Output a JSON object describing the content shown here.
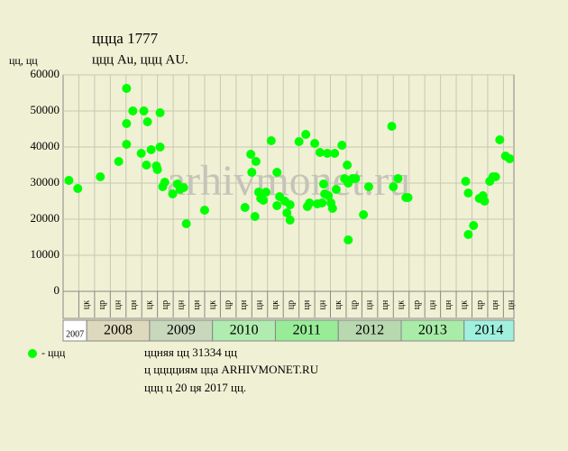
{
  "chart_data": {
    "type": "scatter",
    "title": "ццца 1777",
    "subtitle": "ццц Au, ццц AU.",
    "y_label": "цц, цц",
    "watermark": "arhivmonet.ru",
    "legend_label": "- ццц",
    "notes": [
      "ццняя цц 31334 цц",
      "ц цццциям цца ARHIVMONET.RU",
      "ццц ц 20 ця 2017 цц."
    ],
    "grid": true,
    "ylim": [
      0,
      60000
    ],
    "yticks": [
      0,
      10000,
      20000,
      30000,
      40000,
      50000,
      60000
    ],
    "xlim": [
      -3,
      83
    ],
    "xticks": [
      {
        "value": 0,
        "label": "цк"
      },
      {
        "value": 3,
        "label": "цр"
      },
      {
        "value": 6,
        "label": "цн"
      },
      {
        "value": 9,
        "label": "цн"
      },
      {
        "value": 12,
        "label": "цк"
      },
      {
        "value": 15,
        "label": "цр"
      },
      {
        "value": 18,
        "label": "цн"
      },
      {
        "value": 21,
        "label": "цн"
      },
      {
        "value": 24,
        "label": "цк"
      },
      {
        "value": 27,
        "label": "цр"
      },
      {
        "value": 30,
        "label": "цн"
      },
      {
        "value": 33,
        "label": "цн"
      },
      {
        "value": 36,
        "label": "цк"
      },
      {
        "value": 39,
        "label": "цр"
      },
      {
        "value": 42,
        "label": "цн"
      },
      {
        "value": 45,
        "label": "цн"
      },
      {
        "value": 48,
        "label": "цк"
      },
      {
        "value": 51,
        "label": "цр"
      },
      {
        "value": 54,
        "label": "цн"
      },
      {
        "value": 57,
        "label": "цн"
      },
      {
        "value": 60,
        "label": "цк"
      },
      {
        "value": 63,
        "label": "цр"
      },
      {
        "value": 66,
        "label": "цн"
      },
      {
        "value": 69,
        "label": "цн"
      },
      {
        "value": 72,
        "label": "цк"
      },
      {
        "value": 75,
        "label": "цр"
      },
      {
        "value": 78,
        "label": "цн"
      },
      {
        "value": 81,
        "label": "цн"
      }
    ],
    "year_bands": [
      {
        "label": "2007",
        "from": -3,
        "to": 1.5,
        "color": "#ffffff"
      },
      {
        "label": "2008",
        "from": 1.5,
        "to": 13.5,
        "color": "#ded8bc"
      },
      {
        "label": "2009",
        "from": 13.5,
        "to": 25.5,
        "color": "#c8d8bc"
      },
      {
        "label": "2010",
        "from": 25.5,
        "to": 37.5,
        "color": "#b0ecb0"
      },
      {
        "label": "2011",
        "from": 37.5,
        "to": 49.5,
        "color": "#98ec98"
      },
      {
        "label": "2012",
        "from": 49.5,
        "to": 61.5,
        "color": "#b8d8b0"
      },
      {
        "label": "2013",
        "from": 61.5,
        "to": 73.5,
        "color": "#a8eca8"
      },
      {
        "label": "2014",
        "from": 73.5,
        "to": 83,
        "color": "#a0f0e0"
      }
    ],
    "series": [
      {
        "name": "ццц",
        "color": "#00ff00",
        "x": [
          -1.9,
          -0.2,
          4.1,
          7.6,
          9.1,
          9.1,
          9.1,
          10.3,
          11.9,
          12.4,
          12.9,
          13.1,
          13.8,
          14.8,
          15,
          15.5,
          15.5,
          16,
          16.4,
          17.9,
          18.8,
          19.3,
          20,
          20.5,
          24,
          31.7,
          32.8,
          33,
          33.6,
          33.8,
          34.3,
          34.7,
          35.2,
          35.7,
          36.7,
          37.8,
          37.8,
          38.3,
          39.3,
          39.7,
          40.3,
          40.3,
          42,
          43.3,
          43.6,
          44,
          45,
          45.5,
          46,
          46.4,
          46.7,
          46.9,
          47.4,
          47.6,
          48.1,
          48.4,
          48.8,
          49.1,
          50.2,
          50.7,
          51.2,
          51.4,
          51.4,
          52.2,
          52.8,
          54.3,
          55.3,
          59.7,
          60,
          60.9,
          62.4,
          62.8,
          73.8,
          74.3,
          74.3,
          75.3,
          76.4,
          77.1,
          77.4,
          78.4,
          79,
          79.5,
          80.3,
          81.4,
          82.2
        ],
        "values": [
          30750,
          28500,
          31750,
          36000,
          56250,
          46500,
          40750,
          50000,
          38250,
          50000,
          35000,
          47000,
          39250,
          34750,
          33750,
          49500,
          40000,
          29000,
          30250,
          27000,
          29750,
          28250,
          28750,
          18750,
          22500,
          23250,
          38000,
          33000,
          20750,
          36000,
          27500,
          25750,
          25250,
          27500,
          41750,
          33000,
          23750,
          26250,
          25000,
          21750,
          24000,
          19750,
          41500,
          43500,
          23500,
          24500,
          41000,
          24250,
          38500,
          24500,
          29750,
          27000,
          38250,
          26500,
          24500,
          23000,
          38250,
          28250,
          40500,
          31250,
          35000,
          30000,
          14250,
          31250,
          31250,
          21250,
          29000,
          45750,
          29000,
          31250,
          26000,
          26000,
          30500,
          27250,
          15750,
          18250,
          25750,
          26500,
          25000,
          30500,
          31750,
          31750,
          42000,
          37500,
          36750
        ]
      }
    ]
  }
}
